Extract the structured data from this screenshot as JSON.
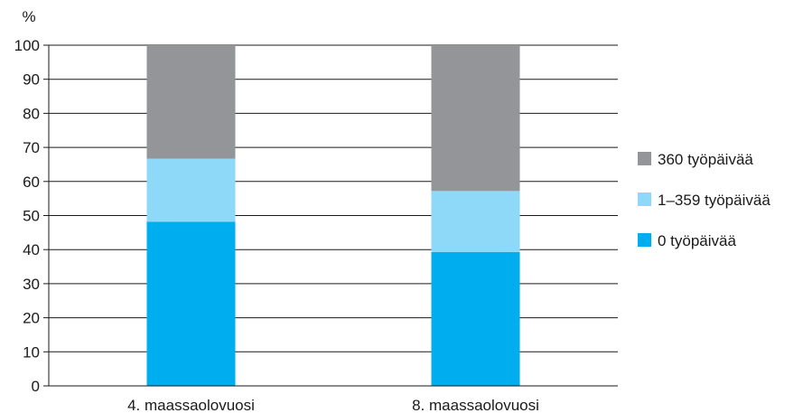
{
  "chart_data": {
    "type": "bar",
    "stacked": true,
    "y_unit_label": "%",
    "categories": [
      "4. maassaolovuosi",
      "8. maassaolovuosi"
    ],
    "series": [
      {
        "name": "0 työpäivää",
        "values": [
          48.2,
          39.3
        ],
        "color": "#00AEEF"
      },
      {
        "name": "1–359 työpäivää",
        "values": [
          18.5,
          17.9
        ],
        "color": "#8ED8F8"
      },
      {
        "name": "360 työpäivää",
        "values": [
          33.3,
          42.8
        ],
        "color": "#939598"
      }
    ],
    "ylim": [
      0,
      100
    ],
    "yticks": [
      0,
      10,
      20,
      30,
      40,
      50,
      60,
      70,
      80,
      90,
      100
    ],
    "grid": true,
    "legend_position": "right",
    "legend_order": [
      "360 työpäivää",
      "1–359 työpäivää",
      "0 työpäivää"
    ]
  }
}
